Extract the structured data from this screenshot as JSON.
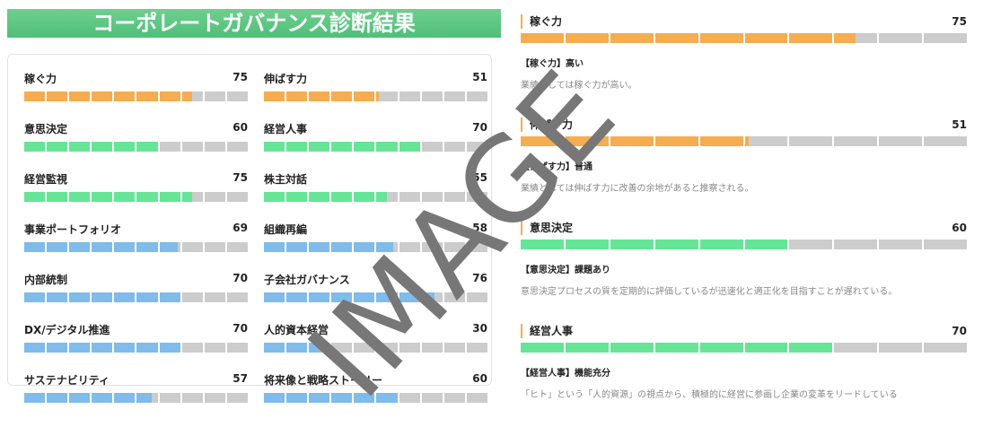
{
  "header": {
    "title": "コーポレートガバナンス診断結果"
  },
  "colors": {
    "orange": "#f5ad4f",
    "green": "#66e596",
    "blue": "#7fbbeb",
    "empty": "#cccccc"
  },
  "scores": [
    {
      "label": "稼ぐ力",
      "value": 75,
      "color": "orange"
    },
    {
      "label": "伸ばす力",
      "value": 51,
      "color": "orange"
    },
    {
      "label": "意思決定",
      "value": 60,
      "color": "green"
    },
    {
      "label": "経営人事",
      "value": 70,
      "color": "green"
    },
    {
      "label": "経営監視",
      "value": 75,
      "color": "green"
    },
    {
      "label": "株主対話",
      "value": 55,
      "color": "green"
    },
    {
      "label": "事業ポートフォリオ",
      "value": 69,
      "color": "blue"
    },
    {
      "label": "組織再編",
      "value": 58,
      "color": "blue"
    },
    {
      "label": "内部統制",
      "value": 70,
      "color": "blue"
    },
    {
      "label": "子会社ガバナンス",
      "value": 76,
      "color": "blue"
    },
    {
      "label": "DX/デジタル推進",
      "value": 70,
      "color": "blue"
    },
    {
      "label": "人的資本経営",
      "value": 30,
      "color": "blue"
    },
    {
      "label": "サステナビリティ",
      "value": 57,
      "color": "blue"
    },
    {
      "label": "将来像と戦略ストーリー",
      "value": 60,
      "color": "blue"
    }
  ],
  "details": [
    {
      "label": "稼ぐ力",
      "value": 75,
      "color": "orange",
      "subtitle": "【稼ぐ力】高い",
      "description": "業績としては稼ぐ力が高い。"
    },
    {
      "label": "伸ばす力",
      "value": 51,
      "color": "orange",
      "subtitle": "【伸ばす力】普通",
      "description": "業績としては伸ばす力に改善の余地があると推察される。"
    },
    {
      "label": "意思決定",
      "value": 60,
      "color": "green",
      "subtitle": "【意思決定】課題あり",
      "description": "意思決定プロセスの質を定期的に評価しているが迅速化と適正化を目指すことが遅れている。"
    },
    {
      "label": "経営人事",
      "value": 70,
      "color": "green",
      "subtitle": "【経営人事】機能充分",
      "description": "「ヒト」という「人的資源」の視点から、積極的に経営に参画し企業の変革をリードしている"
    }
  ],
  "watermark": "IMAGE"
}
